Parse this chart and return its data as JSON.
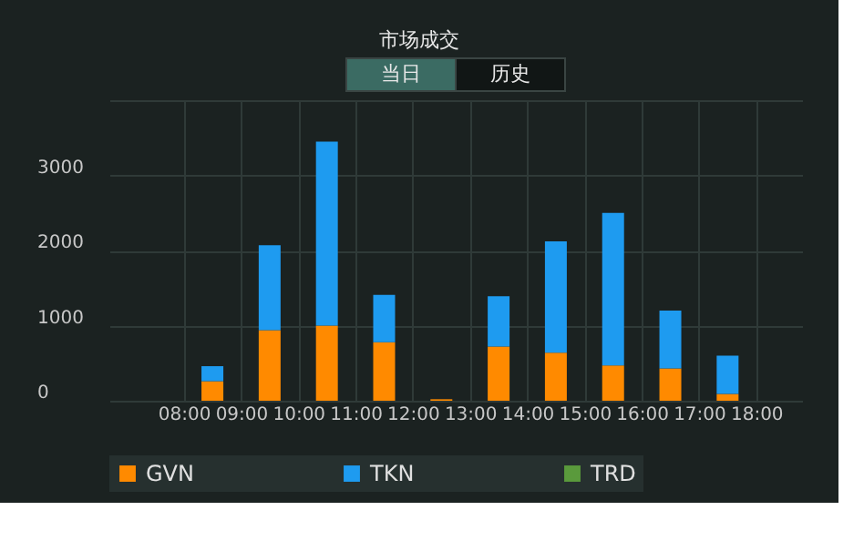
{
  "chart_data": {
    "type": "bar",
    "title": "市场成交",
    "annotations": [
      "当日",
      "历史"
    ],
    "x": [
      8.5,
      9.5,
      10.5,
      11.5,
      12.5,
      13.5,
      14.5,
      15.5,
      16.5,
      17.5
    ],
    "stacked": true,
    "series": [
      {
        "name": "GVN",
        "color": "#ff8a00",
        "values": [
          260,
          940,
          1000,
          780,
          20,
          720,
          640,
          470,
          430,
          90
        ]
      },
      {
        "name": "TKN",
        "color": "#1e9bf0",
        "values": [
          200,
          1130,
          2450,
          630,
          0,
          670,
          1480,
          2030,
          770,
          510
        ]
      },
      {
        "name": "TRD",
        "color": "#5a9a3c",
        "values": [
          null,
          null,
          null,
          null,
          null,
          null,
          null,
          null,
          null,
          null
        ]
      }
    ],
    "xlim": [
      6.7,
      18.8
    ],
    "xticks": [
      {
        "value": 8,
        "label": "08:00"
      },
      {
        "value": 9,
        "label": "09:00"
      },
      {
        "value": 10,
        "label": "10:00"
      },
      {
        "value": 11,
        "label": "11:00"
      },
      {
        "value": 12,
        "label": "12:00"
      },
      {
        "value": 13,
        "label": "13:00"
      },
      {
        "value": 14,
        "label": "14:00"
      },
      {
        "value": 15,
        "label": "15:00"
      },
      {
        "value": 16,
        "label": "16:00"
      },
      {
        "value": 17,
        "label": "17:00"
      },
      {
        "value": 18,
        "label": "18:00"
      }
    ],
    "ylim": [
      0,
      4000
    ],
    "yticks": [
      0,
      1000,
      2000,
      3000,
      {
        "value": 4000,
        "label": null
      }
    ],
    "grid": true,
    "legend": "bottom"
  }
}
